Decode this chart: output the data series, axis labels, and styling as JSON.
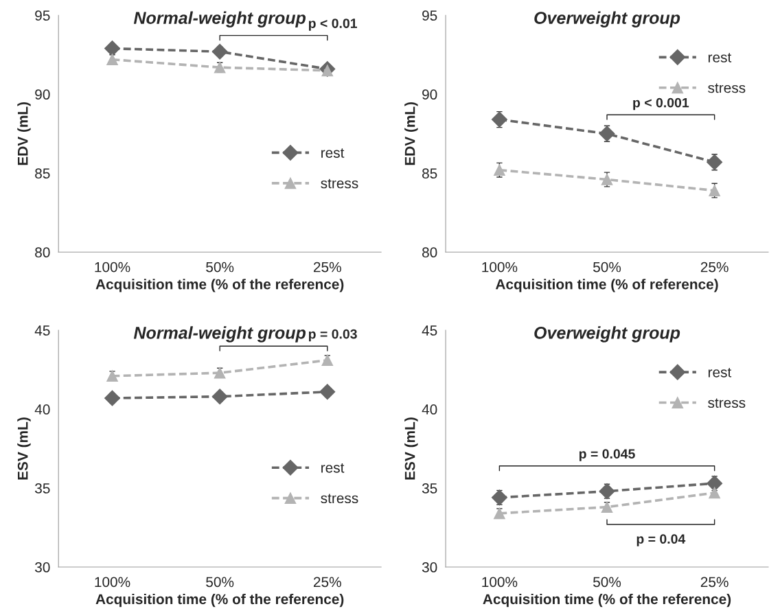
{
  "chart_data": [
    {
      "type": "line",
      "title": "Normal-weight group",
      "xlabel": "Acquisition time (% of the reference)",
      "ylabel": "EDV (mL)",
      "categories": [
        "100%",
        "50%",
        "25%"
      ],
      "ylim": [
        80,
        95
      ],
      "yticks": [
        80,
        85,
        90,
        95
      ],
      "grid": false,
      "legend": "right",
      "line_style": "dashed",
      "series": [
        {
          "name": "rest",
          "color": "#666666",
          "marker": "diamond",
          "values": [
            92.9,
            92.7,
            91.6
          ],
          "errors": [
            0.3,
            0.3,
            0.3
          ]
        },
        {
          "name": "stress",
          "color": "#b3b3b3",
          "marker": "triangle",
          "values": [
            92.2,
            91.7,
            91.5
          ],
          "errors": [
            0.3,
            0.3,
            0.3
          ]
        }
      ],
      "annotations": [
        "p < 0.01"
      ]
    },
    {
      "type": "line",
      "title": "Overweight group",
      "xlabel": "Acquisition time (% of reference)",
      "ylabel": "EDV (mL)",
      "categories": [
        "100%",
        "50%",
        "25%"
      ],
      "ylim": [
        80,
        95
      ],
      "yticks": [
        80,
        85,
        90,
        95
      ],
      "grid": false,
      "legend": "top right",
      "line_style": "dashed",
      "series": [
        {
          "name": "rest",
          "color": "#666666",
          "marker": "diamond",
          "values": [
            88.4,
            87.5,
            85.7
          ],
          "errors": [
            0.5,
            0.5,
            0.5
          ]
        },
        {
          "name": "stress",
          "color": "#b3b3b3",
          "marker": "triangle",
          "values": [
            85.2,
            84.6,
            83.9
          ],
          "errors": [
            0.45,
            0.45,
            0.45
          ]
        }
      ],
      "annotations": [
        "p < 0.001"
      ]
    },
    {
      "type": "line",
      "title": "Normal-weight group",
      "xlabel": "Acquisition time (% of the reference)",
      "ylabel": "ESV (mL)",
      "categories": [
        "100%",
        "50%",
        "25%"
      ],
      "ylim": [
        30,
        45
      ],
      "yticks": [
        30,
        35,
        40,
        45
      ],
      "grid": false,
      "legend": "right",
      "line_style": "dashed",
      "series": [
        {
          "name": "rest",
          "color": "#666666",
          "marker": "diamond",
          "values": [
            40.7,
            40.8,
            41.1
          ],
          "errors": [
            0.3,
            0.3,
            0.3
          ]
        },
        {
          "name": "stress",
          "color": "#b3b3b3",
          "marker": "triangle",
          "values": [
            42.1,
            42.3,
            43.1
          ],
          "errors": [
            0.3,
            0.3,
            0.3
          ]
        }
      ],
      "annotations": [
        "p = 0.03"
      ]
    },
    {
      "type": "line",
      "title": "Overweight group",
      "xlabel": "Acquisition time (% of the reference)",
      "ylabel": "ESV (mL)",
      "categories": [
        "100%",
        "50%",
        "25%"
      ],
      "ylim": [
        30,
        45
      ],
      "yticks": [
        30,
        35,
        40,
        45
      ],
      "grid": false,
      "legend": "top right",
      "line_style": "dashed",
      "series": [
        {
          "name": "rest",
          "color": "#666666",
          "marker": "diamond",
          "values": [
            34.4,
            34.8,
            35.3
          ],
          "errors": [
            0.45,
            0.45,
            0.45
          ]
        },
        {
          "name": "stress",
          "color": "#b3b3b3",
          "marker": "triangle",
          "values": [
            33.4,
            33.8,
            34.7
          ],
          "errors": [
            0.3,
            0.3,
            0.3
          ]
        }
      ],
      "annotations": [
        "p = 0.045",
        "p = 0.04"
      ]
    }
  ]
}
